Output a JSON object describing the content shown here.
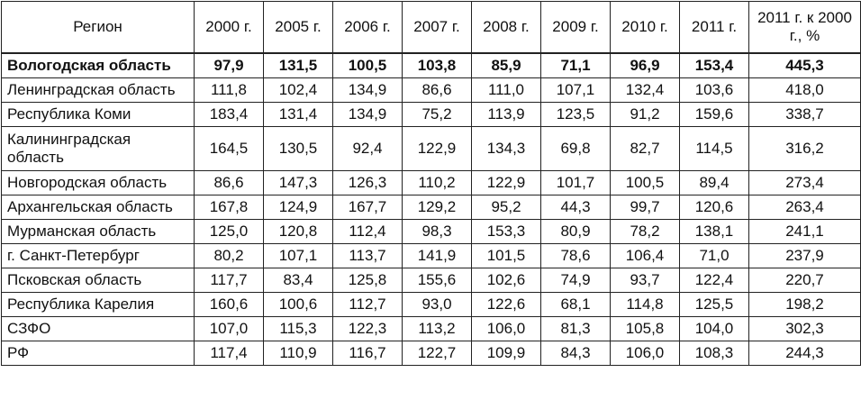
{
  "table": {
    "headers": [
      "Регион",
      "2000 г.",
      "2005 г.",
      "2006 г.",
      "2007 г.",
      "2008 г.",
      "2009 г.",
      "2010 г.",
      "2011 г.",
      "2011 г. к 2000 г., %"
    ],
    "rows": [
      {
        "region": "Вологодская область",
        "values": [
          "97,9",
          "131,5",
          "100,5",
          "103,8",
          "85,9",
          "71,1",
          "96,9",
          "153,4",
          "445,3"
        ],
        "bold": true
      },
      {
        "region": "Ленинградская область",
        "values": [
          "111,8",
          "102,4",
          "134,9",
          "86,6",
          "111,0",
          "107,1",
          "132,4",
          "103,6",
          "418,0"
        ]
      },
      {
        "region": "Республика Коми",
        "values": [
          "183,4",
          "131,4",
          "134,9",
          "75,2",
          "113,9",
          "123,5",
          "91,2",
          "159,6",
          "338,7"
        ]
      },
      {
        "region": "Калининградская область",
        "values": [
          "164,5",
          "130,5",
          "92,4",
          "122,9",
          "134,3",
          "69,8",
          "82,7",
          "114,5",
          "316,2"
        ],
        "tall": true
      },
      {
        "region": "Новгородская область",
        "values": [
          "86,6",
          "147,3",
          "126,3",
          "110,2",
          "122,9",
          "101,7",
          "100,5",
          "89,4",
          "273,4"
        ]
      },
      {
        "region": "Архангельская область",
        "values": [
          "167,8",
          "124,9",
          "167,7",
          "129,2",
          "95,2",
          "44,3",
          "99,7",
          "120,6",
          "263,4"
        ]
      },
      {
        "region": "Мурманская область",
        "values": [
          "125,0",
          "120,8",
          "112,4",
          "98,3",
          "153,3",
          "80,9",
          "78,2",
          "138,1",
          "241,1"
        ]
      },
      {
        "region": "г. Санкт-Петербург",
        "values": [
          "80,2",
          "107,1",
          "113,7",
          "141,9",
          "101,5",
          "78,6",
          "106,4",
          "71,0",
          "237,9"
        ]
      },
      {
        "region": "Псковская область",
        "values": [
          "117,7",
          "83,4",
          "125,8",
          "155,6",
          "102,6",
          "74,9",
          "93,7",
          "122,4",
          "220,7"
        ]
      },
      {
        "region": "Республика Карелия",
        "values": [
          "160,6",
          "100,6",
          "112,7",
          "93,0",
          "122,6",
          "68,1",
          "114,8",
          "125,5",
          "198,2"
        ]
      },
      {
        "region": "СЗФО",
        "values": [
          "107,0",
          "115,3",
          "122,3",
          "113,2",
          "106,0",
          "81,3",
          "105,8",
          "104,0",
          "302,3"
        ]
      },
      {
        "region": "РФ",
        "values": [
          "117,4",
          "110,9",
          "116,7",
          "122,7",
          "109,9",
          "84,3",
          "106,0",
          "108,3",
          "244,3"
        ]
      }
    ]
  }
}
